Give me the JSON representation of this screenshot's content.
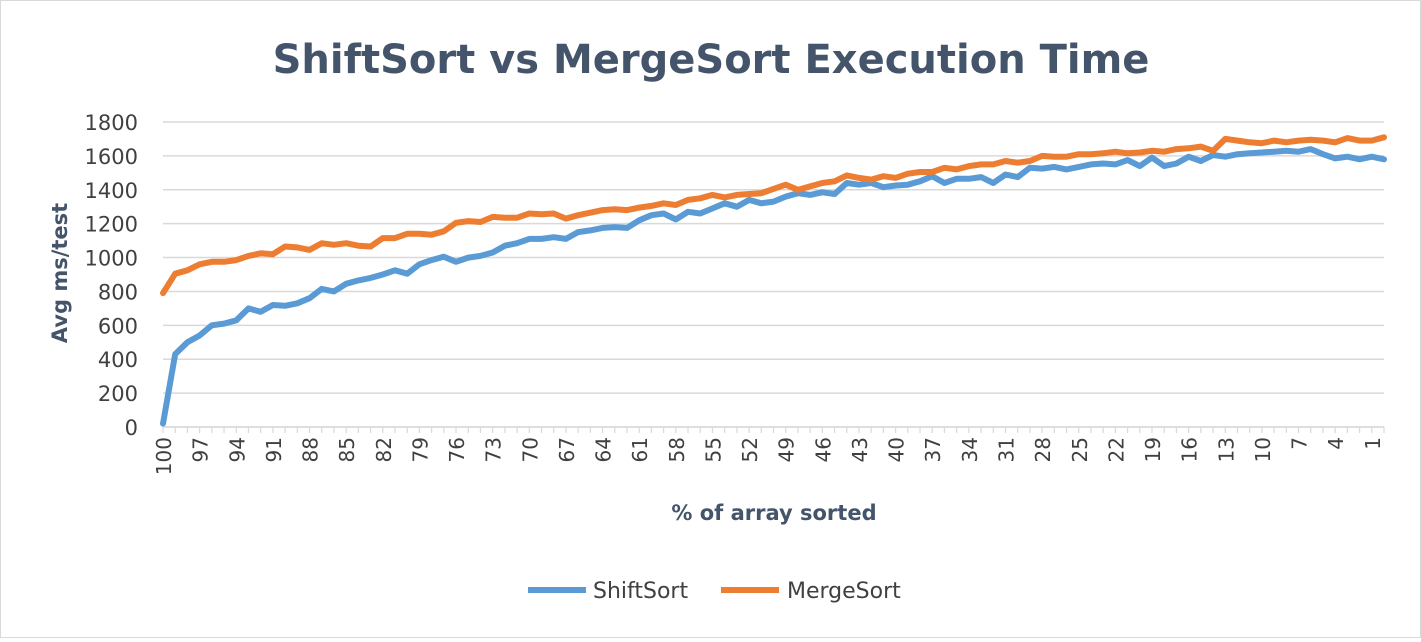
{
  "chart_data": {
    "type": "line",
    "title": "ShiftSort vs MergeSort Execution Time",
    "xlabel": "% of array sorted",
    "ylabel": "Avg ms/test",
    "x": [
      100,
      99,
      98,
      97,
      96,
      95,
      94,
      93,
      92,
      91,
      90,
      89,
      88,
      87,
      86,
      85,
      84,
      83,
      82,
      81,
      80,
      79,
      78,
      77,
      76,
      75,
      74,
      73,
      72,
      71,
      70,
      69,
      68,
      67,
      66,
      65,
      64,
      63,
      62,
      61,
      60,
      59,
      58,
      57,
      56,
      55,
      54,
      53,
      52,
      51,
      50,
      49,
      48,
      47,
      46,
      45,
      44,
      43,
      42,
      41,
      40,
      39,
      38,
      37,
      36,
      35,
      34,
      33,
      32,
      31,
      30,
      29,
      28,
      27,
      26,
      25,
      24,
      23,
      22,
      21,
      20,
      19,
      18,
      17,
      16,
      15,
      14,
      13,
      12,
      11,
      10,
      9,
      8,
      7,
      6,
      5,
      4,
      3,
      2,
      1,
      0
    ],
    "x_tick_labels": [
      "100",
      "97",
      "94",
      "91",
      "88",
      "85",
      "82",
      "79",
      "76",
      "73",
      "70",
      "67",
      "64",
      "61",
      "58",
      "55",
      "52",
      "49",
      "46",
      "43",
      "40",
      "37",
      "34",
      "31",
      "28",
      "25",
      "22",
      "19",
      "16",
      "13",
      "10",
      "7",
      "4",
      "1"
    ],
    "y_ticks": [
      0,
      200,
      400,
      600,
      800,
      1000,
      1200,
      1400,
      1600,
      1800
    ],
    "ylim": [
      0,
      1800
    ],
    "grid": true,
    "legend_position": "bottom",
    "series": [
      {
        "name": "ShiftSort",
        "color": "#5b9bd5",
        "values": [
          20,
          430,
          500,
          540,
          600,
          610,
          630,
          700,
          680,
          720,
          715,
          730,
          760,
          815,
          800,
          845,
          865,
          880,
          900,
          925,
          905,
          960,
          985,
          1005,
          975,
          1000,
          1010,
          1030,
          1070,
          1085,
          1110,
          1110,
          1120,
          1110,
          1150,
          1160,
          1175,
          1180,
          1175,
          1220,
          1250,
          1260,
          1225,
          1270,
          1260,
          1290,
          1320,
          1300,
          1340,
          1320,
          1330,
          1360,
          1380,
          1370,
          1385,
          1375,
          1440,
          1430,
          1440,
          1415,
          1425,
          1430,
          1450,
          1480,
          1440,
          1465,
          1465,
          1475,
          1440,
          1490,
          1475,
          1530,
          1525,
          1535,
          1520,
          1535,
          1550,
          1555,
          1550,
          1575,
          1540,
          1590,
          1540,
          1555,
          1595,
          1570,
          1605,
          1595,
          1610,
          1615,
          1620,
          1625,
          1630,
          1625,
          1640,
          1610,
          1585,
          1595,
          1580,
          1595,
          1580
        ]
      },
      {
        "name": "MergeSort",
        "color": "#ed7d31",
        "values": [
          790,
          905,
          925,
          960,
          975,
          975,
          985,
          1010,
          1025,
          1020,
          1065,
          1060,
          1045,
          1085,
          1075,
          1085,
          1070,
          1065,
          1115,
          1115,
          1140,
          1140,
          1135,
          1155,
          1205,
          1215,
          1210,
          1240,
          1235,
          1235,
          1260,
          1255,
          1260,
          1230,
          1250,
          1265,
          1280,
          1285,
          1280,
          1295,
          1305,
          1320,
          1310,
          1340,
          1350,
          1370,
          1355,
          1370,
          1375,
          1380,
          1405,
          1430,
          1400,
          1420,
          1440,
          1450,
          1485,
          1470,
          1460,
          1480,
          1470,
          1495,
          1505,
          1505,
          1530,
          1520,
          1540,
          1550,
          1550,
          1570,
          1560,
          1570,
          1600,
          1595,
          1595,
          1610,
          1610,
          1615,
          1625,
          1615,
          1620,
          1630,
          1625,
          1640,
          1645,
          1655,
          1630,
          1700,
          1690,
          1680,
          1675,
          1690,
          1680,
          1690,
          1695,
          1690,
          1680,
          1705,
          1690,
          1690,
          1710
        ]
      }
    ]
  }
}
